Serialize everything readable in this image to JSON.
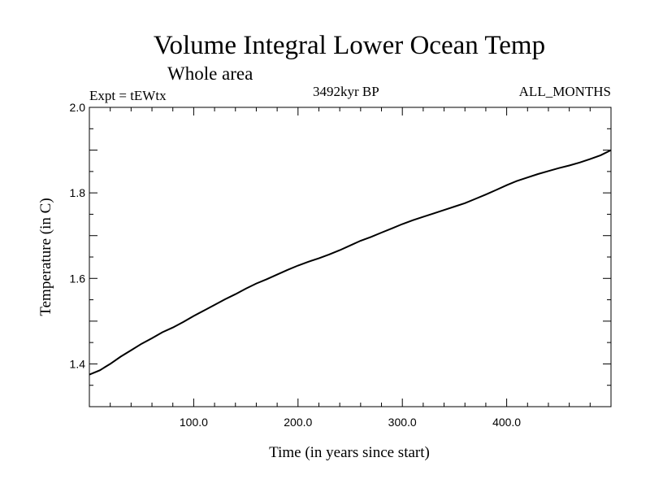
{
  "chart_data": {
    "type": "line",
    "title": "Volume Integral Lower Ocean Temp",
    "subtitle": "Whole area",
    "experiment": "Expt = tEWtx",
    "period": "3492kyr BP",
    "months": "ALL_MONTHS",
    "xlabel": "Time (in years since start)",
    "ylabel": "Temperature (in C)",
    "xlim": [
      0,
      500
    ],
    "ylim": [
      1.3,
      2.0
    ],
    "xticks": [
      100,
      200,
      300,
      400
    ],
    "xtick_labels": [
      "100.0",
      "200.0",
      "300.0",
      "400.0"
    ],
    "yticks": [
      1.4,
      1.6,
      1.8,
      2.0
    ],
    "ytick_labels": [
      "1.4",
      "1.6",
      "1.8",
      "2.0"
    ],
    "grid": false,
    "series": [
      {
        "name": "Temperature",
        "x": [
          0,
          10,
          20,
          30,
          40,
          50,
          60,
          70,
          80,
          90,
          100,
          110,
          120,
          130,
          140,
          150,
          160,
          170,
          180,
          190,
          200,
          210,
          220,
          230,
          240,
          250,
          260,
          270,
          280,
          290,
          300,
          310,
          320,
          330,
          340,
          350,
          360,
          370,
          380,
          390,
          400,
          410,
          420,
          430,
          440,
          450,
          460,
          470,
          480,
          490,
          500
        ],
        "y": [
          1.375,
          1.385,
          1.4,
          1.417,
          1.432,
          1.447,
          1.46,
          1.474,
          1.485,
          1.498,
          1.512,
          1.525,
          1.538,
          1.551,
          1.563,
          1.576,
          1.588,
          1.598,
          1.609,
          1.62,
          1.63,
          1.639,
          1.647,
          1.656,
          1.666,
          1.677,
          1.688,
          1.697,
          1.707,
          1.717,
          1.727,
          1.736,
          1.744,
          1.752,
          1.76,
          1.768,
          1.776,
          1.786,
          1.796,
          1.807,
          1.818,
          1.828,
          1.836,
          1.844,
          1.851,
          1.858,
          1.864,
          1.871,
          1.879,
          1.888,
          1.9
        ]
      }
    ]
  }
}
